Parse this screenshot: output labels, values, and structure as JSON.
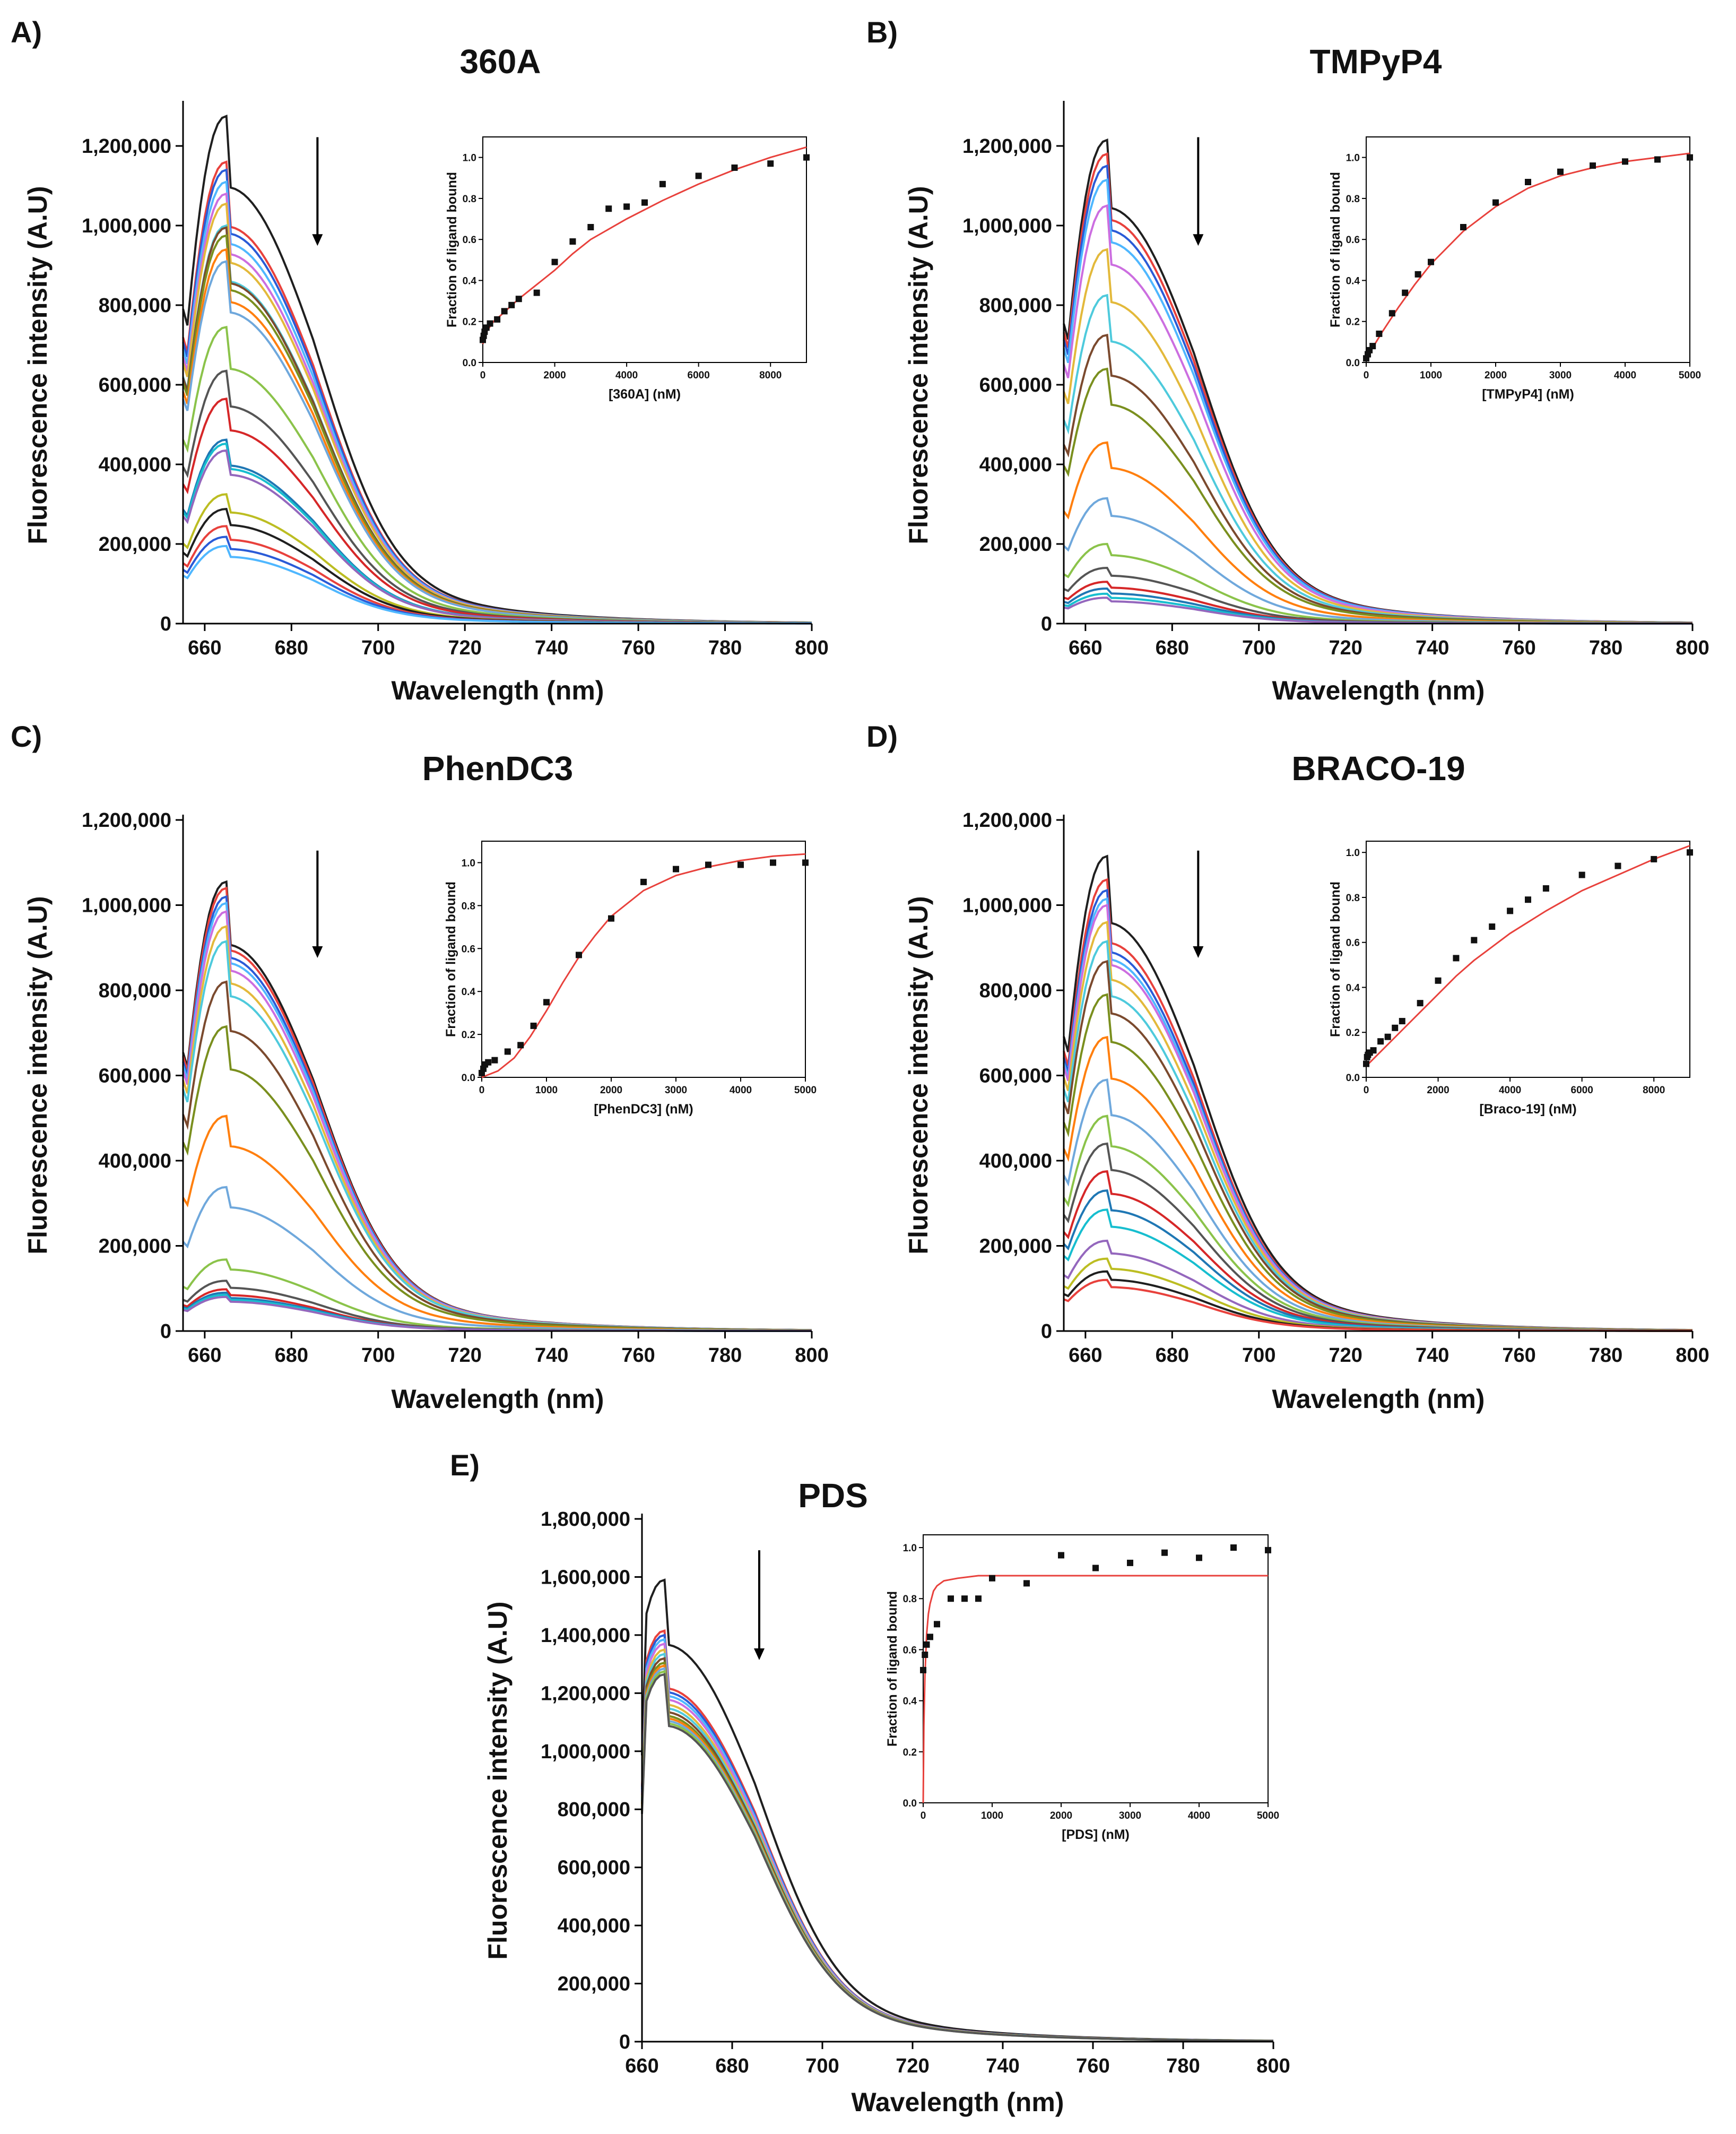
{
  "figure": {
    "colors": {
      "fit_line": "#e8413c",
      "points": "#111111",
      "axis": "#000000",
      "palette": [
        "#1f1f1f",
        "#e8413c",
        "#2a5bd7",
        "#4fb7ff",
        "#cc6ee0",
        "#e3b93b",
        "#4ecadc",
        "#7b4a2e",
        "#7a8f1e",
        "#ff7f0e",
        "#6fa8dc",
        "#8bc34a",
        "#555555",
        "#d62728",
        "#1f77b4",
        "#17becf",
        "#9467bd",
        "#bcbd22"
      ]
    }
  },
  "chart_data": [
    {
      "panel": "A)",
      "title": "360A",
      "type": "line",
      "xlabel": "Wavelength (nm)",
      "ylabel": "Fluorescence intensity (A.U)",
      "xlim": [
        655,
        800
      ],
      "ylim": [
        0,
        1300000
      ],
      "xticks": [
        "660",
        "680",
        "700",
        "720",
        "740",
        "760",
        "780",
        "800"
      ],
      "yticks": [
        "0",
        "200,000",
        "400,000",
        "600,000",
        "800,000",
        "1,000,000",
        "1,200,000"
      ],
      "series_peaks": [
        1275000,
        1160000,
        1140000,
        1110000,
        1080000,
        1055000,
        1000000,
        995000,
        975000,
        940000,
        910000,
        745000,
        635000,
        565000,
        462000,
        452000,
        435000,
        325000,
        288000,
        245000,
        218000,
        195000
      ],
      "arrow": "down",
      "inset": {
        "type": "scatter",
        "xlabel": "[360A] (nM)",
        "ylabel": "Fraction of ligand bound",
        "xlim": [
          0,
          9000
        ],
        "ylim": [
          0,
          1.1
        ],
        "xticks": [
          "0",
          "2000",
          "4000",
          "6000",
          "8000"
        ],
        "yticks": [
          "0.0",
          "0.2",
          "0.4",
          "0.6",
          "0.8",
          "1.0"
        ],
        "points_x": [
          0,
          25,
          50,
          100,
          200,
          400,
          600,
          800,
          1000,
          1500,
          2000,
          2500,
          3000,
          3500,
          4000,
          4500,
          5000,
          6000,
          7000,
          8000,
          9000
        ],
        "points_y": [
          0.11,
          0.13,
          0.15,
          0.17,
          0.19,
          0.21,
          0.25,
          0.28,
          0.31,
          0.34,
          0.49,
          0.59,
          0.66,
          0.75,
          0.76,
          0.78,
          0.87,
          0.91,
          0.95,
          0.97,
          1.0
        ],
        "fit_x": [
          0,
          100,
          300,
          500,
          1000,
          1500,
          2000,
          2500,
          3000,
          4000,
          5000,
          6000,
          7000,
          8000,
          9000
        ],
        "fit_y": [
          0.09,
          0.15,
          0.2,
          0.23,
          0.31,
          0.38,
          0.45,
          0.53,
          0.6,
          0.7,
          0.79,
          0.87,
          0.94,
          1.0,
          1.05
        ]
      }
    },
    {
      "panel": "B)",
      "title": "TMPyP4",
      "type": "line",
      "xlabel": "Wavelength (nm)",
      "ylabel": "Fluorescence intensity (A.U)",
      "xlim": [
        655,
        800
      ],
      "ylim": [
        0,
        1300000
      ],
      "xticks": [
        "660",
        "680",
        "700",
        "720",
        "740",
        "760",
        "780",
        "800"
      ],
      "yticks": [
        "0",
        "200,000",
        "400,000",
        "600,000",
        "800,000",
        "1,000,000",
        "1,200,000"
      ],
      "series_peaks": [
        1215000,
        1180000,
        1150000,
        1115000,
        1050000,
        940000,
        825000,
        725000,
        640000,
        455000,
        315000,
        200000,
        140000,
        105000,
        88000,
        75000,
        65000
      ],
      "arrow": "down",
      "inset": {
        "type": "scatter",
        "xlabel": "[TMPyP4] (nM)",
        "ylabel": "Fraction of ligand bound",
        "xlim": [
          0,
          5000
        ],
        "ylim": [
          0,
          1.1
        ],
        "xticks": [
          "0",
          "1000",
          "2000",
          "3000",
          "4000",
          "5000"
        ],
        "yticks": [
          "0.0",
          "0.2",
          "0.4",
          "0.6",
          "0.8",
          "1.0"
        ],
        "points_x": [
          0,
          25,
          50,
          100,
          200,
          400,
          600,
          800,
          1000,
          1500,
          2000,
          2500,
          3000,
          3500,
          4000,
          4500,
          5000
        ],
        "points_y": [
          0.02,
          0.04,
          0.06,
          0.08,
          0.14,
          0.24,
          0.34,
          0.43,
          0.49,
          0.66,
          0.78,
          0.88,
          0.93,
          0.96,
          0.98,
          0.99,
          1.0
        ],
        "fit_x": [
          0,
          250,
          500,
          750,
          1000,
          1500,
          2000,
          2500,
          3000,
          3500,
          4000,
          4500,
          5000
        ],
        "fit_y": [
          0.02,
          0.15,
          0.27,
          0.38,
          0.48,
          0.64,
          0.76,
          0.85,
          0.91,
          0.95,
          0.98,
          1.0,
          1.02
        ]
      }
    },
    {
      "panel": "C)",
      "title": "PhenDC3",
      "type": "line",
      "xlabel": "Wavelength (nm)",
      "ylabel": "Fluorescence intensity (A.U)",
      "xlim": [
        655,
        800
      ],
      "ylim": [
        0,
        1200000
      ],
      "xticks": [
        "660",
        "680",
        "700",
        "720",
        "740",
        "760",
        "780",
        "800"
      ],
      "yticks": [
        "0",
        "200,000",
        "400,000",
        "600,000",
        "800,000",
        "1,000,000",
        "1,200,000"
      ],
      "series_peaks": [
        1055000,
        1040000,
        1020000,
        1005000,
        985000,
        950000,
        915000,
        820000,
        715000,
        505000,
        338000,
        168000,
        118000,
        98000,
        90000,
        85000,
        80000
      ],
      "arrow": "down",
      "inset": {
        "type": "scatter",
        "xlabel": "[PhenDC3] (nM)",
        "ylabel": "Fraction of ligand bound",
        "xlim": [
          0,
          5000
        ],
        "ylim": [
          0,
          1.1
        ],
        "xticks": [
          "0",
          "1000",
          "2000",
          "3000",
          "4000",
          "5000"
        ],
        "yticks": [
          "0.0",
          "0.2",
          "0.4",
          "0.6",
          "0.8",
          "1.0"
        ],
        "points_x": [
          0,
          25,
          50,
          100,
          200,
          400,
          600,
          800,
          1000,
          1500,
          2000,
          2500,
          3000,
          3500,
          4000,
          4500,
          5000
        ],
        "points_y": [
          0.02,
          0.04,
          0.06,
          0.07,
          0.08,
          0.12,
          0.15,
          0.24,
          0.35,
          0.57,
          0.74,
          0.91,
          0.97,
          0.99,
          0.99,
          1.0,
          1.0
        ],
        "fit_x": [
          0,
          250,
          500,
          750,
          1000,
          1250,
          1500,
          1750,
          2000,
          2500,
          3000,
          3500,
          4000,
          4500,
          5000
        ],
        "fit_y": [
          0.0,
          0.03,
          0.09,
          0.19,
          0.31,
          0.44,
          0.56,
          0.66,
          0.75,
          0.87,
          0.94,
          0.98,
          1.01,
          1.03,
          1.04
        ]
      }
    },
    {
      "panel": "D)",
      "title": "BRACO-19",
      "type": "line",
      "xlabel": "Wavelength (nm)",
      "ylabel": "Fluorescence intensity (A.U)",
      "xlim": [
        655,
        800
      ],
      "ylim": [
        0,
        1200000
      ],
      "xticks": [
        "660",
        "680",
        "700",
        "720",
        "740",
        "760",
        "780",
        "800"
      ],
      "yticks": [
        "0",
        "200,000",
        "400,000",
        "600,000",
        "800,000",
        "1,000,000",
        "1,200,000"
      ],
      "series_peaks": [
        1115000,
        1060000,
        1035000,
        1015000,
        1000000,
        960000,
        915000,
        868000,
        790000,
        690000,
        590000,
        505000,
        440000,
        375000,
        330000,
        285000,
        212000,
        170000,
        140000,
        120000
      ],
      "arrow": "down",
      "inset": {
        "type": "scatter",
        "xlabel": "[Braco-19] (nM)",
        "ylabel": "Fraction of ligand bound",
        "xlim": [
          0,
          9000
        ],
        "ylim": [
          0,
          1.05
        ],
        "xticks": [
          "0",
          "2000",
          "4000",
          "6000",
          "8000"
        ],
        "yticks": [
          "0.0",
          "0.2",
          "0.4",
          "0.6",
          "0.8",
          "1.0"
        ],
        "points_x": [
          0,
          25,
          50,
          100,
          200,
          400,
          600,
          800,
          1000,
          1500,
          2000,
          2500,
          3000,
          3500,
          4000,
          4500,
          5000,
          6000,
          7000,
          8000,
          9000
        ],
        "points_y": [
          0.06,
          0.09,
          0.1,
          0.11,
          0.12,
          0.16,
          0.18,
          0.22,
          0.25,
          0.33,
          0.43,
          0.53,
          0.61,
          0.67,
          0.74,
          0.79,
          0.84,
          0.9,
          0.94,
          0.97,
          1.0
        ],
        "fit_x": [
          0,
          500,
          1000,
          1500,
          2000,
          2500,
          3000,
          4000,
          5000,
          6000,
          7000,
          8000,
          9000
        ],
        "fit_y": [
          0.05,
          0.13,
          0.21,
          0.29,
          0.37,
          0.45,
          0.52,
          0.64,
          0.74,
          0.83,
          0.9,
          0.97,
          1.03
        ]
      }
    },
    {
      "panel": "E)",
      "title": "PDS",
      "type": "line",
      "xlabel": "Wavelength (nm)",
      "ylabel": "Fluorescence intensity (A.U)",
      "xlim": [
        660,
        800
      ],
      "ylim": [
        0,
        1800000
      ],
      "xticks": [
        "660",
        "680",
        "700",
        "720",
        "740",
        "760",
        "780",
        "800"
      ],
      "yticks": [
        "0",
        "200,000",
        "400,000",
        "600,000",
        "800,000",
        "1,000,000",
        "1,200,000",
        "1,400,000",
        "1,600,000",
        "1,800,000"
      ],
      "series_peaks": [
        1590000,
        1415000,
        1400000,
        1385000,
        1370000,
        1350000,
        1335000,
        1320000,
        1305000,
        1295000,
        1285000,
        1275000,
        1265000
      ],
      "arrow": "down",
      "inset": {
        "type": "scatter",
        "xlabel": "[PDS] (nM)",
        "ylabel": "Fraction of ligand bound",
        "xlim": [
          0,
          5000
        ],
        "ylim": [
          0,
          1.05
        ],
        "xticks": [
          "0",
          "1000",
          "2000",
          "3000",
          "4000",
          "5000"
        ],
        "yticks": [
          "0.0",
          "0.2",
          "0.4",
          "0.6",
          "0.8",
          "1.0"
        ],
        "points_x": [
          0,
          25,
          50,
          100,
          200,
          400,
          600,
          800,
          1000,
          1500,
          2000,
          2500,
          3000,
          3500,
          4000,
          4500,
          5000
        ],
        "points_y": [
          0.52,
          0.58,
          0.62,
          0.65,
          0.7,
          0.8,
          0.8,
          0.8,
          0.88,
          0.86,
          0.97,
          0.92,
          0.94,
          0.98,
          0.96,
          1.0,
          0.99
        ],
        "fit_x": [
          0,
          10,
          25,
          50,
          75,
          100,
          150,
          200,
          300,
          500,
          800,
          1200,
          2000,
          3000,
          5000
        ],
        "fit_y": [
          0.0,
          0.3,
          0.5,
          0.66,
          0.74,
          0.78,
          0.83,
          0.85,
          0.87,
          0.88,
          0.89,
          0.89,
          0.89,
          0.89,
          0.89
        ]
      }
    }
  ]
}
